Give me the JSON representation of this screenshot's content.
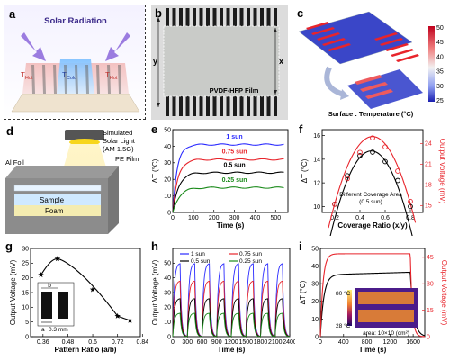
{
  "panels": {
    "a": {
      "label": "a",
      "title": "Solar Radiation",
      "t_hot_left": "T",
      "t_hot_left_sub": "Hot",
      "t_cold": "T",
      "t_cold_sub": "Cold",
      "t_hot_right": "T",
      "t_hot_right_sub": "Hot"
    },
    "b": {
      "label": "b",
      "film_label": "PVDF-HFP Film",
      "dim_y": "y",
      "dim_x": "x"
    },
    "c": {
      "label": "c",
      "colorbar_ticks": [
        "50",
        "45",
        "40",
        "35",
        "30",
        "25"
      ],
      "caption": "Surface : Temperature (°C)",
      "colors": {
        "hot": "#e8242b",
        "cold": "#2c35c8"
      }
    },
    "d": {
      "label": "d",
      "sim_light": "Simulated",
      "sim_light2": "Solar Light",
      "am": "(AM 1.5G)",
      "al_foil": "Al Foil",
      "pe_film": "PE Film",
      "sample": "Sample",
      "foam": "Foam"
    },
    "e": {
      "label": "e"
    },
    "f": {
      "label": "f",
      "legend": "Different Coverage Area",
      "legend2": "(0.5 sun)"
    },
    "g": {
      "label": "g",
      "inset_b": "b",
      "inset_a": "a",
      "inset_val": "0.3 mm"
    },
    "h": {
      "label": "h"
    },
    "i": {
      "label": "i",
      "inset_top": "80 °C",
      "inset_bottom": "28 °C",
      "area": "area: 10×10  (cm²)"
    }
  },
  "chart_data": [
    {
      "id": "e",
      "type": "line",
      "xlabel": "Time (s)",
      "ylabel": "ΔT (°C)",
      "xlim": [
        0,
        560
      ],
      "ylim": [
        0,
        50
      ],
      "xticks": [
        0,
        100,
        200,
        300,
        400,
        500
      ],
      "yticks": [
        0,
        10,
        20,
        30,
        40,
        50
      ],
      "series": [
        {
          "name": "1 sun",
          "color": "#2a2aff",
          "plateau": 41,
          "tau": 22
        },
        {
          "name": "0.75 sun",
          "color": "#e8242b",
          "plateau": 32,
          "tau": 25
        },
        {
          "name": "0.5 sun",
          "color": "#000000",
          "plateau": 24,
          "tau": 28
        },
        {
          "name": "0.25 sun",
          "color": "#1a8a1a",
          "plateau": 15,
          "tau": 32
        }
      ]
    },
    {
      "id": "f",
      "type": "scatter",
      "xlabel": "Coverage Ratio (x/y)",
      "ylabel": "ΔT (°C)",
      "y2label": "Output Voltage (mV)",
      "xlim": [
        0.1,
        0.9
      ],
      "ylim": [
        9.5,
        16.5
      ],
      "y2lim": [
        14,
        26
      ],
      "xticks": [
        0.2,
        0.4,
        0.6,
        0.8
      ],
      "yticks": [
        10,
        12,
        14,
        16
      ],
      "y2ticks": [
        15,
        18,
        21,
        24
      ],
      "series": [
        {
          "name": "ΔT",
          "color": "#000000",
          "x": [
            0.2,
            0.3,
            0.4,
            0.5,
            0.6,
            0.7,
            0.8
          ],
          "y": [
            10.2,
            12.6,
            14.3,
            14.6,
            13.8,
            12.2,
            10.0
          ]
        },
        {
          "name": "Output Voltage",
          "color": "#e8242b",
          "axis": "y2",
          "x": [
            0.2,
            0.3,
            0.4,
            0.5,
            0.6,
            0.7,
            0.8
          ],
          "y": [
            15.2,
            18.9,
            22.7,
            24.8,
            23.5,
            20.0,
            15.6
          ]
        }
      ]
    },
    {
      "id": "g",
      "type": "line",
      "xlabel": "Pattern Ratio (a/b)",
      "ylabel": "Output Voltage (mV)",
      "xlim": [
        0.3,
        0.83
      ],
      "ylim": [
        0,
        30
      ],
      "xticks": [
        0.36,
        0.48,
        0.6,
        0.72,
        0.84
      ],
      "yticks": [
        0,
        5,
        10,
        15,
        20,
        25,
        30
      ],
      "series": [
        {
          "name": "V",
          "color": "#000000",
          "x": [
            0.35,
            0.43,
            0.6,
            0.72,
            0.78
          ],
          "y": [
            21,
            26.5,
            16,
            7,
            5.5
          ]
        }
      ]
    },
    {
      "id": "h",
      "type": "line",
      "xlabel": "Time (s)",
      "ylabel": "Output Voltage (mV)",
      "xlim": [
        0,
        2400
      ],
      "ylim": [
        0,
        60
      ],
      "xticks": [
        0,
        300,
        600,
        900,
        1200,
        1500,
        1800,
        2100,
        2400
      ],
      "yticks": [
        0,
        10,
        20,
        30,
        40,
        50
      ],
      "cycles": 8,
      "period": 300,
      "series": [
        {
          "name": "1 sun",
          "color": "#2a2aff",
          "peak": 50
        },
        {
          "name": "0.75 sun",
          "color": "#e8242b",
          "peak": 38
        },
        {
          "name": "0.5 sun",
          "color": "#000000",
          "peak": 26
        },
        {
          "name": "0.25 sun",
          "color": "#1a8a1a",
          "peak": 16
        }
      ]
    },
    {
      "id": "i",
      "type": "line",
      "xlabel": "Time (s)",
      "ylabel": "ΔT (°C)",
      "y2label": "Output Voltage (mV)",
      "xlim": [
        0,
        1800
      ],
      "ylim": [
        0,
        50
      ],
      "y2lim": [
        0,
        50
      ],
      "xticks": [
        0,
        400,
        800,
        1200,
        1600
      ],
      "yticks": [
        0,
        10,
        20,
        30,
        40,
        50
      ],
      "y2ticks": [
        0,
        15,
        30,
        45
      ],
      "series": [
        {
          "name": "ΔT",
          "color": "#000000",
          "plateau": 35,
          "off_at": 1550
        },
        {
          "name": "Output Voltage",
          "color": "#e8242b",
          "axis": "y2",
          "plateau": 47,
          "off_at": 1550
        }
      ]
    }
  ]
}
